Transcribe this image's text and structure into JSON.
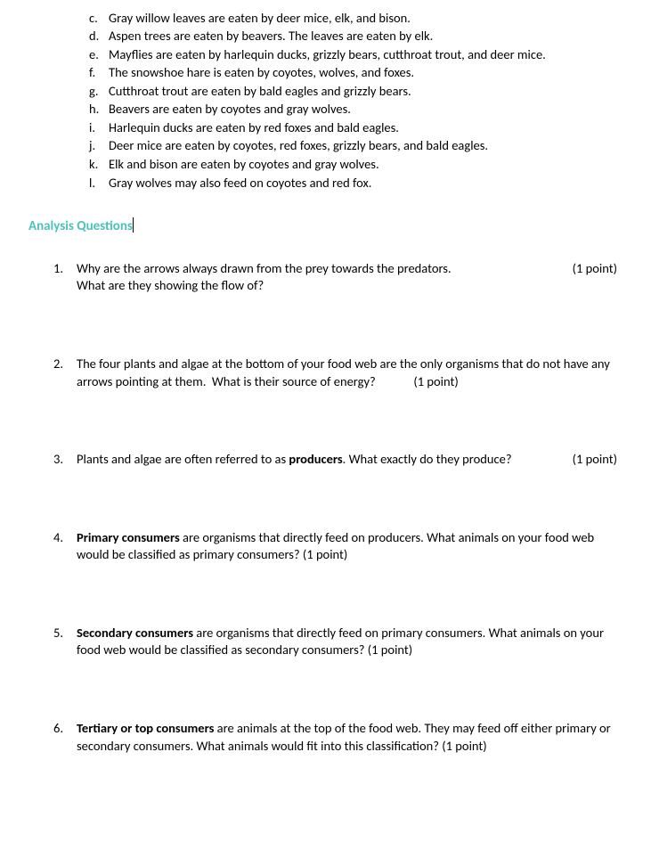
{
  "topList": [
    {
      "label": "c.",
      "text": "Gray willow leaves are eaten by deer mice, elk, and bison."
    },
    {
      "label": "d.",
      "text": "Aspen trees are eaten by beavers.  The leaves are eaten by elk."
    },
    {
      "label": "e.",
      "text": "Mayflies are eaten by harlequin ducks, grizzly bears, cutthroat trout, and deer mice."
    },
    {
      "label": "f.",
      "text": "The snowshoe hare is eaten by coyotes, wolves, and foxes."
    },
    {
      "label": "g.",
      "text": "Cutthroat trout are eaten by bald eagles and grizzly bears."
    },
    {
      "label": "h.",
      "text": "Beavers are eaten by coyotes and gray wolves."
    },
    {
      "label": "i.",
      "text": "Harlequin ducks are eaten by red foxes and bald eagles."
    },
    {
      "label": "j.",
      "text": "Deer mice are eaten by coyotes, red foxes, grizzly bears, and bald eagles."
    },
    {
      "label": "k.",
      "text": "Elk and bison are eaten by coyotes and gray wolves."
    },
    {
      "label": "l.",
      "text": "Gray wolves may also feed on coyotes and red fox."
    }
  ],
  "sectionHeading": "Analysis Questions",
  "questions": [
    {
      "label": "1.",
      "line1": "Why are the arrows always drawn from the prey towards the predators.",
      "points": "(1 point)",
      "line2": "What are they showing the flow of?"
    },
    {
      "label": "2.",
      "full": "The four plants and algae at the bottom of your food web are the only organisms that do not have any arrows pointing at them.  What is their source of energy?             (1 point)"
    },
    {
      "label": "3.",
      "line1_pre": "Plants and algae are often referred to as ",
      "line1_bold": "producers",
      "line1_post": ".  What exactly do they produce?",
      "points": "(1 point)"
    },
    {
      "label": "4.",
      "line1_bold": "Primary consumers",
      "line1_post": " are organisms that directly feed on producers.  What animals on your food web would be classified as primary consumers?   (1 point)"
    },
    {
      "label": "5.",
      "line1_bold": "Secondary consumers",
      "line1_post": " are organisms that directly feed on primary consumers.  What animals on your food web would be classified as secondary consumers?       (1 point)"
    },
    {
      "label": "6.",
      "line1_bold": "Tertiary or top consumers",
      "line1_post": " are animals at the top of the food web.  They may feed off either primary or secondary consumers.  What animals would fit into this classification? (1 point)"
    }
  ],
  "styling": {
    "heading_color": "#4cc1bc",
    "text_color": "#000000",
    "background_color": "#ffffff",
    "font_family": "Calibri",
    "body_fontsize": 14.5,
    "heading_fontsize": 15
  }
}
